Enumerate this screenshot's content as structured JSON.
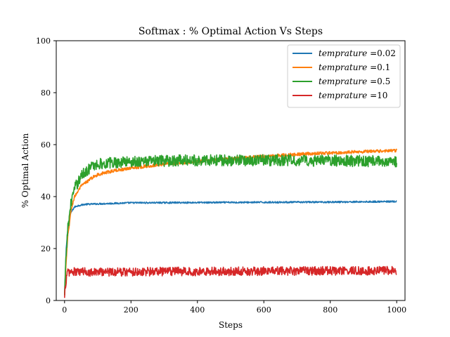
{
  "chart_data": {
    "type": "line",
    "title": "Softmax : % Optimal Action Vs Steps",
    "xlabel": "Steps",
    "ylabel": "% Optimal Action",
    "xlim": [
      -25,
      1025
    ],
    "ylim": [
      0,
      100
    ],
    "xticks": [
      0,
      200,
      400,
      600,
      800,
      1000
    ],
    "yticks": [
      0,
      20,
      40,
      60,
      80,
      100
    ],
    "grid": false,
    "legend_position": "top-right",
    "legend_variable": "temprature",
    "series": [
      {
        "name": "temprature =0.02",
        "value_label": "=0.02",
        "color": "#1f77b4",
        "noise": 0.3,
        "x": [
          0,
          5,
          10,
          15,
          20,
          30,
          40,
          60,
          100,
          200,
          400,
          600,
          800,
          1000
        ],
        "y": [
          2,
          20,
          28,
          32,
          34,
          36,
          36.5,
          37,
          37.2,
          37.6,
          37.7,
          37.8,
          37.9,
          38.1
        ]
      },
      {
        "name": "temprature =0.1",
        "value_label": "=0.1",
        "color": "#ff7f0e",
        "noise": 0.6,
        "x": [
          0,
          5,
          10,
          20,
          30,
          50,
          80,
          100,
          150,
          200,
          300,
          400,
          500,
          600,
          700,
          800,
          900,
          1000
        ],
        "y": [
          2,
          15,
          25,
          35,
          40,
          44,
          47,
          48.5,
          50,
          51,
          52.5,
          53.5,
          54.5,
          55.5,
          56.3,
          56.8,
          57.3,
          57.7
        ]
      },
      {
        "name": "temprature =0.5",
        "value_label": "=0.5",
        "color": "#2ca02c",
        "noise": 2.2,
        "x": [
          0,
          5,
          10,
          20,
          30,
          50,
          80,
          100,
          150,
          200,
          400,
          600,
          800,
          1000
        ],
        "y": [
          2,
          18,
          28,
          38,
          43,
          48,
          51.5,
          52.5,
          53.2,
          53.5,
          54,
          54,
          53.8,
          53.6
        ]
      },
      {
        "name": "temprature =10",
        "value_label": "=10",
        "color": "#d62728",
        "noise": 1.7,
        "x": [
          0,
          3,
          6,
          10,
          1000
        ],
        "y": [
          1,
          6,
          9,
          11,
          11.5
        ]
      }
    ]
  }
}
